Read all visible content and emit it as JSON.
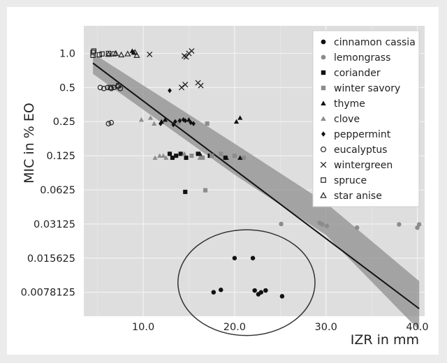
{
  "chart_data": {
    "type": "scatter",
    "xlabel": "IZR in mm",
    "ylabel": "MIC  in % EO",
    "y_scale": "log2",
    "xlim": [
      3.5,
      40.8
    ],
    "ylim": [
      0.0048,
      1.75
    ],
    "x_ticks": [
      10,
      20,
      30,
      40
    ],
    "x_tick_labels": [
      "10.0",
      "20.0",
      "30.0",
      "40.0"
    ],
    "y_ticks": [
      1.0,
      0.5,
      0.25,
      0.125,
      0.0625,
      0.03125,
      0.015625,
      0.0078125
    ],
    "y_tick_labels": [
      "1.0",
      "0.5",
      "0.25",
      "0.125",
      "0.0625",
      "0.03125",
      "0.015625",
      "0.0078125"
    ],
    "grid": true,
    "legend_position": "top-right",
    "regression": {
      "line": [
        [
          4.5,
          0.82
        ],
        [
          40.2,
          0.0056
        ]
      ],
      "band_upper": [
        [
          4.5,
          1.0
        ],
        [
          20,
          0.16
        ],
        [
          30,
          0.048
        ],
        [
          40.2,
          0.0098
        ]
      ],
      "band_lower": [
        [
          4.5,
          0.66
        ],
        [
          20,
          0.085
        ],
        [
          30,
          0.025
        ],
        [
          40.2,
          0.0036
        ]
      ]
    },
    "annotation_ellipse": {
      "center": [
        21.3,
        0.0095
      ],
      "radii_data": [
        7.5,
        1.0
      ]
    },
    "series": [
      {
        "name": "cinnamon cassia",
        "marker": "circle-filled",
        "color": "#111111",
        "x": [
          17.7,
          18.5,
          20.0,
          22.0,
          22.2,
          22.6,
          22.9,
          23.4,
          25.2
        ],
        "y": [
          0.0078125,
          0.0082,
          0.015625,
          0.015625,
          0.0081,
          0.0075,
          0.0078,
          0.0081,
          0.0072
        ]
      },
      {
        "name": "lemongrass",
        "marker": "circle-filled",
        "color": "#8c8c8c",
        "x": [
          25.1,
          29.3,
          29.6,
          30.1,
          33.4,
          38.0,
          40.0,
          40.2
        ],
        "y": [
          0.03125,
          0.032,
          0.031,
          0.03,
          0.029,
          0.031,
          0.029,
          0.031
        ]
      },
      {
        "name": "coriander",
        "marker": "square-filled",
        "color": "#111111",
        "x": [
          12.9,
          13.2,
          13.6,
          14.1,
          14.7,
          16.0,
          17.3,
          19.0,
          14.6
        ],
        "y": [
          0.13,
          0.12,
          0.125,
          0.13,
          0.12,
          0.13,
          0.125,
          0.12,
          0.06
        ]
      },
      {
        "name": "winter savory",
        "marker": "square-filled",
        "color": "#8c8c8c",
        "x": [
          13.9,
          15.3,
          16.5,
          17.5,
          18.5,
          20.0,
          21.0,
          17.0,
          16.8
        ],
        "y": [
          0.245,
          0.125,
          0.12,
          0.125,
          0.13,
          0.125,
          0.12,
          0.24,
          0.062
        ]
      },
      {
        "name": "thyme",
        "marker": "triangle-filled",
        "color": "#111111",
        "x": [
          8.8,
          8.95,
          12.0,
          12.4,
          15.0,
          20.2,
          20.6,
          16.2,
          19.1,
          20.6
        ],
        "y": [
          1.05,
          1.02,
          0.25,
          0.26,
          0.26,
          0.25,
          0.27,
          0.13,
          0.12,
          0.12
        ]
      },
      {
        "name": "clove",
        "marker": "triangle-filled",
        "color": "#8c8c8c",
        "x": [
          9.8,
          10.8,
          11.2,
          12.2,
          14.5,
          11.3,
          11.8,
          12.5,
          16.2
        ],
        "y": [
          0.26,
          0.27,
          0.24,
          0.125,
          0.13,
          0.12,
          0.125,
          0.12,
          0.12
        ]
      },
      {
        "name": "peppermint",
        "marker": "diamond-filled",
        "color": "#111111",
        "x": [
          12.9,
          13.5,
          14.0,
          14.4,
          14.6,
          15.2,
          15.5,
          11.9,
          13.3
        ],
        "y": [
          0.47,
          0.25,
          0.255,
          0.26,
          0.255,
          0.245,
          0.24,
          0.24,
          0.235
        ]
      },
      {
        "name": "eucalyptus",
        "marker": "circle-open",
        "color": "#222222",
        "x": [
          5.3,
          5.7,
          6.1,
          6.5,
          6.8,
          7.2,
          7.5,
          6.2,
          6.5
        ],
        "y": [
          0.5,
          0.49,
          0.5,
          0.49,
          0.5,
          0.51,
          0.49,
          0.24,
          0.245
        ]
      },
      {
        "name": "wintergreen",
        "marker": "x",
        "color": "#222222",
        "x": [
          10.7,
          14.5,
          14.7,
          15.0,
          15.3,
          16.0,
          16.3,
          14.2,
          14.6
        ],
        "y": [
          0.98,
          0.95,
          0.93,
          1.0,
          1.05,
          0.55,
          0.52,
          0.5,
          0.53
        ]
      },
      {
        "name": "spruce",
        "marker": "square-open",
        "color": "#222222",
        "x": [
          4.5,
          4.5,
          5.2,
          5.5,
          6.2,
          6.8,
          6.4,
          4.6,
          7.3
        ],
        "y": [
          1.02,
          0.96,
          0.97,
          0.99,
          1.0,
          0.99,
          0.5,
          1.05,
          0.52
        ]
      },
      {
        "name": "star anise",
        "marker": "triangle-open",
        "color": "#222222",
        "x": [
          6.2,
          7.0,
          7.6,
          8.3,
          9.1,
          9.3
        ],
        "y": [
          0.98,
          1.0,
          0.97,
          0.99,
          1.02,
          0.96
        ]
      }
    ]
  }
}
